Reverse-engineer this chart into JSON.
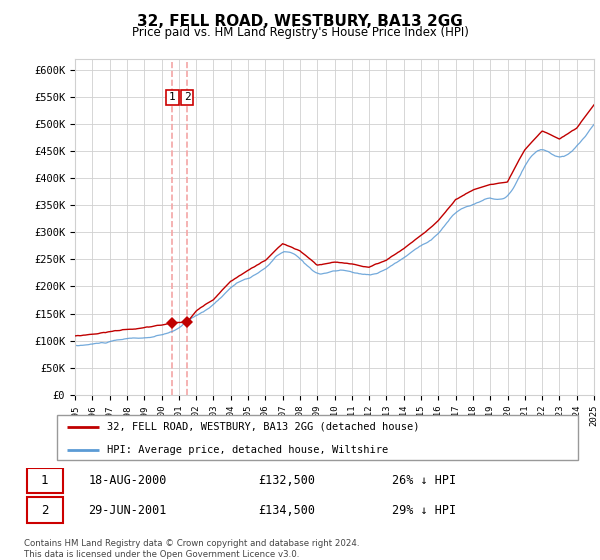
{
  "title": "32, FELL ROAD, WESTBURY, BA13 2GG",
  "subtitle": "Price paid vs. HM Land Registry's House Price Index (HPI)",
  "legend_line1": "32, FELL ROAD, WESTBURY, BA13 2GG (detached house)",
  "legend_line2": "HPI: Average price, detached house, Wiltshire",
  "footnote": "Contains HM Land Registry data © Crown copyright and database right 2024.\nThis data is licensed under the Open Government Licence v3.0.",
  "transactions": [
    {
      "num": 1,
      "date": "18-AUG-2000",
      "price": "£132,500",
      "pct": "26% ↓ HPI",
      "x": 2000.63
    },
    {
      "num": 2,
      "date": "29-JUN-2001",
      "price": "£134,500",
      "pct": "29% ↓ HPI",
      "x": 2001.49
    }
  ],
  "transaction_prices": [
    132500,
    134500
  ],
  "ylim": [
    0,
    620000
  ],
  "xlim": [
    1995,
    2025
  ],
  "yticks": [
    0,
    50000,
    100000,
    150000,
    200000,
    250000,
    300000,
    350000,
    400000,
    450000,
    500000,
    550000,
    600000
  ],
  "ytick_labels": [
    "£0",
    "£50K",
    "£100K",
    "£150K",
    "£200K",
    "£250K",
    "£300K",
    "£350K",
    "£400K",
    "£450K",
    "£500K",
    "£550K",
    "£600K"
  ],
  "hpi_color": "#5b9bd5",
  "property_color": "#c00000",
  "dashed_color": "#f4a5a5",
  "background_color": "#ffffff",
  "grid_color": "#d0d0d0",
  "label_box_color": "#cc0000"
}
